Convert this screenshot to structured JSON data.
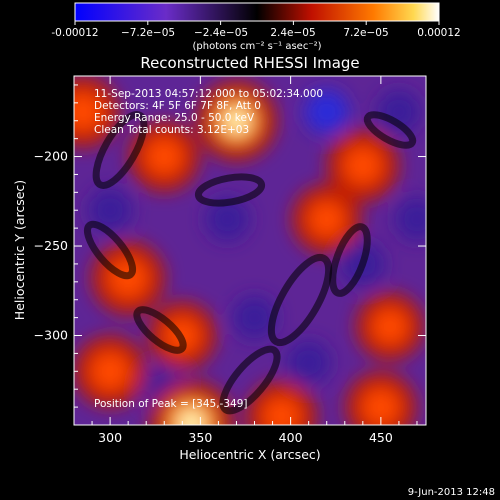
{
  "chart_data": {
    "type": "heatmap",
    "title": "Reconstructed RHESSI Image",
    "xlabel": "Heliocentric X (arcsec)",
    "ylabel": "Heliocentric Y (arcsec)",
    "xlim": [
      280,
      475
    ],
    "ylim": [
      -350,
      -155
    ],
    "x_ticks": [
      300,
      350,
      400,
      450
    ],
    "y_ticks": [
      -200,
      -250,
      -300
    ],
    "colorbar": {
      "min": -0.00012,
      "max": 0.00012,
      "tick_labels": [
        "-0.00012",
        "−7.2e−05",
        "−2.4e−05",
        "2.4e−05",
        "7.2e−05",
        "0.00012"
      ],
      "units": "(photons cm⁻² s⁻¹ asec⁻²)"
    },
    "annotations": [
      "11-Sep-2013 04:57:12.000 to 05:02:34.000",
      "Detectors: 4F 5F 6F 7F 8F, Att 0",
      "Energy Range: 25.0 - 50.0 keV",
      "Clean    Total counts: 3.12E+03"
    ],
    "peak_label": "Position of Peak = [345,-349]",
    "peak_position": [
      345,
      -349
    ],
    "hot_spots": [
      {
        "x": 345,
        "y": -349,
        "intensity": 1.0
      },
      {
        "x": 370,
        "y": -180,
        "intensity": 0.85
      },
      {
        "x": 310,
        "y": -268,
        "intensity": 0.6
      },
      {
        "x": 440,
        "y": -205,
        "intensity": 0.55
      },
      {
        "x": 300,
        "y": -320,
        "intensity": 0.55
      },
      {
        "x": 330,
        "y": -200,
        "intensity": 0.5
      },
      {
        "x": 395,
        "y": -345,
        "intensity": 0.5
      },
      {
        "x": 450,
        "y": -340,
        "intensity": 0.5
      },
      {
        "x": 420,
        "y": -235,
        "intensity": 0.45
      },
      {
        "x": 340,
        "y": -300,
        "intensity": 0.4
      },
      {
        "x": 285,
        "y": -175,
        "intensity": 0.55
      },
      {
        "x": 455,
        "y": -295,
        "intensity": 0.4
      }
    ],
    "cold_spots": [
      {
        "x": 420,
        "y": -175,
        "intensity": -0.8
      },
      {
        "x": 460,
        "y": -175,
        "intensity": -0.6
      },
      {
        "x": 380,
        "y": -290,
        "intensity": -0.6
      },
      {
        "x": 440,
        "y": -260,
        "intensity": -0.5
      },
      {
        "x": 300,
        "y": -230,
        "intensity": -0.45
      },
      {
        "x": 365,
        "y": -235,
        "intensity": -0.5
      },
      {
        "x": 330,
        "y": -330,
        "intensity": -0.45
      },
      {
        "x": 410,
        "y": -315,
        "intensity": -0.5
      },
      {
        "x": 470,
        "y": -235,
        "intensity": -0.45
      }
    ]
  },
  "footer_date": "9-Jun-2013 12:48"
}
